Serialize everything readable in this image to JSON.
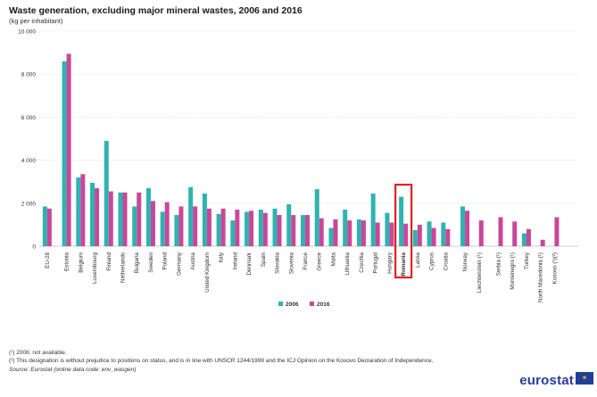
{
  "title": "Waste generation, excluding major mineral wastes, 2006 and 2016",
  "subtitle": "(kg per inhabitant)",
  "footnotes": [
    "(¹) 2006: not available.",
    "(²) This designation is without prejudice to positions on status, and is in line with UNSCR 1244/1999 and the ICJ Opinion on the Kosovo Declaration of Independence."
  ],
  "source": "Source: Eurostat (online data code: env_wasgen)",
  "logo_text": "eurostat",
  "colors": {
    "series_2006": "#2db3b0",
    "series_2016": "#c9479a",
    "highlight": "#e0221f",
    "grid": "#d9d9d9"
  },
  "chart_data": {
    "type": "bar",
    "ylim": [
      0,
      10000
    ],
    "yticks": [
      "0",
      "2 000",
      "4 000",
      "6 000",
      "8 000",
      "10 000"
    ],
    "grid": true,
    "legend_position": "bottom",
    "highlighted_category": "Romania",
    "categories": [
      "EU-28",
      "Estonia",
      "Belgium",
      "Luxembourg",
      "Finland",
      "Netherlands",
      "Bulgaria",
      "Sweden",
      "Poland",
      "Germany",
      "Austria",
      "United Kingdom",
      "Italy",
      "Ireland",
      "Denmark",
      "Spain",
      "Slovakia",
      "Slovenia",
      "France",
      "Greece",
      "Malta",
      "Lithuania",
      "Czechia",
      "Portugal",
      "Hungary",
      "Romania",
      "Latvia",
      "Cyprus",
      "Croatia",
      "Norway",
      "Liechtenstein (¹)",
      "Serbia (¹)",
      "Montenegro (¹)",
      "Turkey",
      "North Macedonia (¹)",
      "Kosovo (¹)(²)"
    ],
    "groups": [
      1,
      28,
      2,
      5
    ],
    "series": [
      {
        "name": "2006",
        "values": [
          1850,
          8600,
          3200,
          2950,
          4900,
          2500,
          1850,
          2700,
          1600,
          1450,
          2750,
          2450,
          1500,
          1200,
          1600,
          1700,
          1750,
          1950,
          1450,
          2650,
          850,
          1700,
          1250,
          2450,
          1550,
          2300,
          750,
          1150,
          1100,
          1850,
          null,
          null,
          null,
          600,
          null,
          null
        ]
      },
      {
        "name": "2016",
        "values": [
          1750,
          8950,
          3350,
          2700,
          2550,
          2500,
          2500,
          2100,
          2050,
          1850,
          1850,
          1750,
          1750,
          1700,
          1650,
          1550,
          1450,
          1450,
          1450,
          1300,
          1250,
          1200,
          1200,
          1100,
          1100,
          1050,
          1000,
          850,
          800,
          1650,
          1200,
          1350,
          1150,
          800,
          300,
          1350
        ]
      }
    ]
  }
}
